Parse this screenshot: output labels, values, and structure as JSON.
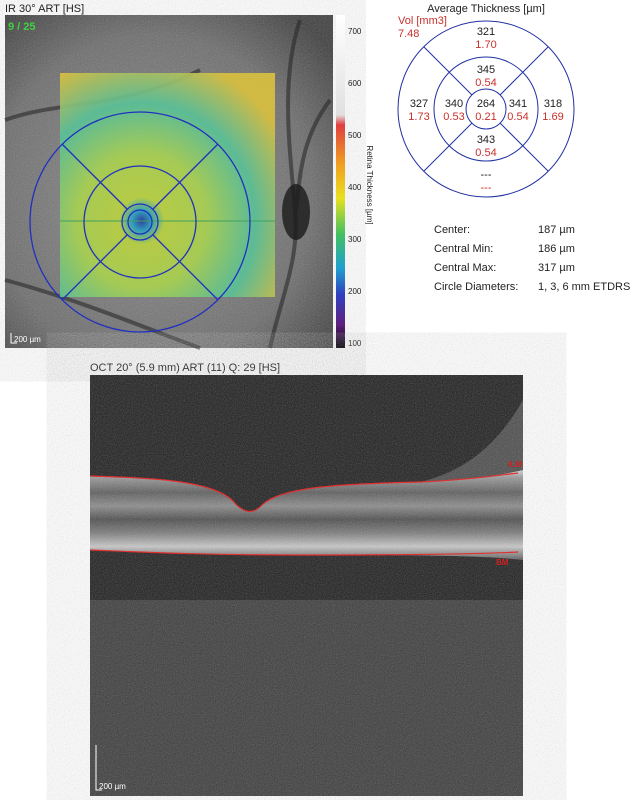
{
  "fundus": {
    "title": "IR 30° ART [HS]",
    "counter": "9 / 25",
    "scale": "200 µm"
  },
  "colorbar": {
    "label": "Retina Thickness [µm]",
    "ticks": [
      "700",
      "600",
      "500",
      "400",
      "300",
      "200",
      "100"
    ]
  },
  "etdrs": {
    "title": "Average Thickness [µm]",
    "vol_label": "Vol [mm3]",
    "vol_total": "7.48",
    "sectors": {
      "center": {
        "thickness": "264",
        "volume": "0.21"
      },
      "inner_superior": {
        "thickness": "345",
        "volume": "0.54"
      },
      "inner_left": {
        "thickness": "340",
        "volume": "0.53"
      },
      "inner_right": {
        "thickness": "341",
        "volume": "0.54"
      },
      "inner_inferior": {
        "thickness": "343",
        "volume": "0.54"
      },
      "outer_superior": {
        "thickness": "321",
        "volume": "1.70"
      },
      "outer_left": {
        "thickness": "327",
        "volume": "1.73"
      },
      "outer_right": {
        "thickness": "318",
        "volume": "1.69"
      },
      "outer_inferior": {
        "thickness": "---",
        "volume": "---"
      }
    }
  },
  "stats": {
    "rows": [
      [
        "Center:",
        "187 µm"
      ],
      [
        "Central Min:",
        "186 µm"
      ],
      [
        "Central Max:",
        "317 µm"
      ],
      [
        "Circle Diameters:",
        "1, 3, 6 mm ETDRS"
      ]
    ]
  },
  "oct": {
    "title": "OCT 20° (5.9 mm) ART (11) Q: 29 [HS]",
    "ilm_label": "ILM",
    "bm_label": "BM",
    "scale": "200 µm"
  }
}
